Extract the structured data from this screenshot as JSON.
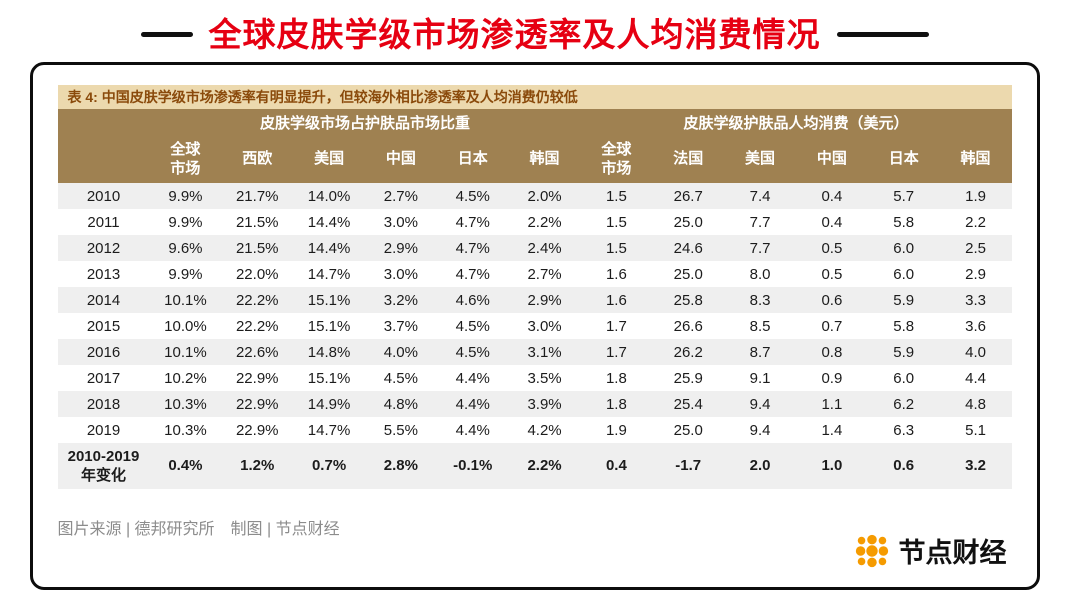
{
  "header": {
    "title": "全球皮肤学级市场渗透率及人均消费情况"
  },
  "chart_data": {
    "type": "table",
    "caption": "表 4: 中国皮肤学级市场渗透率有明显提升，但较海外相比渗透率及人均消费仍较低",
    "group_headers": [
      "皮肤学级市场占护肤品市场比重",
      "皮肤学级护肤品人均消费（美元）"
    ],
    "columns": [
      "全球\n市场",
      "西欧",
      "美国",
      "中国",
      "日本",
      "韩国",
      "全球\n市场",
      "法国",
      "美国",
      "中国",
      "日本",
      "韩国"
    ],
    "rows": [
      {
        "label": "2010",
        "values": [
          "9.9%",
          "21.7%",
          "14.0%",
          "2.7%",
          "4.5%",
          "2.0%",
          "1.5",
          "26.7",
          "7.4",
          "0.4",
          "5.7",
          "1.9"
        ]
      },
      {
        "label": "2011",
        "values": [
          "9.9%",
          "21.5%",
          "14.4%",
          "3.0%",
          "4.7%",
          "2.2%",
          "1.5",
          "25.0",
          "7.7",
          "0.4",
          "5.8",
          "2.2"
        ]
      },
      {
        "label": "2012",
        "values": [
          "9.6%",
          "21.5%",
          "14.4%",
          "2.9%",
          "4.7%",
          "2.4%",
          "1.5",
          "24.6",
          "7.7",
          "0.5",
          "6.0",
          "2.5"
        ]
      },
      {
        "label": "2013",
        "values": [
          "9.9%",
          "22.0%",
          "14.7%",
          "3.0%",
          "4.7%",
          "2.7%",
          "1.6",
          "25.0",
          "8.0",
          "0.5",
          "6.0",
          "2.9"
        ]
      },
      {
        "label": "2014",
        "values": [
          "10.1%",
          "22.2%",
          "15.1%",
          "3.2%",
          "4.6%",
          "2.9%",
          "1.6",
          "25.8",
          "8.3",
          "0.6",
          "5.9",
          "3.3"
        ]
      },
      {
        "label": "2015",
        "values": [
          "10.0%",
          "22.2%",
          "15.1%",
          "3.7%",
          "4.5%",
          "3.0%",
          "1.7",
          "26.6",
          "8.5",
          "0.7",
          "5.8",
          "3.6"
        ]
      },
      {
        "label": "2016",
        "values": [
          "10.1%",
          "22.6%",
          "14.8%",
          "4.0%",
          "4.5%",
          "3.1%",
          "1.7",
          "26.2",
          "8.7",
          "0.8",
          "5.9",
          "4.0"
        ]
      },
      {
        "label": "2017",
        "values": [
          "10.2%",
          "22.9%",
          "15.1%",
          "4.5%",
          "4.4%",
          "3.5%",
          "1.8",
          "25.9",
          "9.1",
          "0.9",
          "6.0",
          "4.4"
        ]
      },
      {
        "label": "2018",
        "values": [
          "10.3%",
          "22.9%",
          "14.9%",
          "4.8%",
          "4.4%",
          "3.9%",
          "1.8",
          "25.4",
          "9.4",
          "1.1",
          "6.2",
          "4.8"
        ]
      },
      {
        "label": "2019",
        "values": [
          "10.3%",
          "22.9%",
          "14.7%",
          "5.5%",
          "4.4%",
          "4.2%",
          "1.9",
          "25.0",
          "9.4",
          "1.4",
          "6.3",
          "5.1"
        ]
      }
    ],
    "change_row": {
      "label": "2010-2019\n年变化",
      "values": [
        "0.4%",
        "1.2%",
        "0.7%",
        "2.8%",
        "-0.1%",
        "2.2%",
        "0.4",
        "-1.7",
        "2.0",
        "1.0",
        "0.6",
        "3.2"
      ]
    }
  },
  "footer": {
    "source": "图片来源 | 德邦研究所　制图 | 节点财经",
    "logo_text": "节点财经"
  },
  "colors": {
    "title_red": "#e60012",
    "header_brown": "#9f8151",
    "caption_bg": "#ecd9ae",
    "caption_text": "#8a4a0b",
    "row_stripe": "#efefef",
    "logo_orange": "#f59b00"
  }
}
